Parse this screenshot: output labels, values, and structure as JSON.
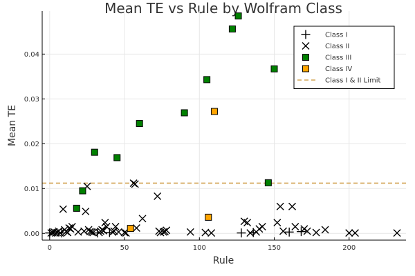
{
  "chart_data": {
    "type": "scatter",
    "title": "Mean TE vs Rule by Wolfram Class",
    "xlabel": "Rule",
    "ylabel": "Mean TE",
    "xlim": [
      -5,
      238
    ],
    "ylim": [
      -0.0015,
      0.0496
    ],
    "xticks": [
      0,
      50,
      100,
      150,
      200
    ],
    "xtick_labels": [
      "0",
      "50",
      "100",
      "150",
      "200"
    ],
    "yticks": [
      0,
      0.01,
      0.02,
      0.03,
      0.04
    ],
    "ytick_labels": [
      "0.00",
      "0.01",
      "0.02",
      "0.03",
      "0.04"
    ],
    "grid": true,
    "legend_position": "top-right",
    "threshold": {
      "name": "Class I & II Limit",
      "y": 0.0112,
      "color": "#d4a557"
    },
    "series": [
      {
        "name": "Class I",
        "marker": "plus",
        "color": "#000000",
        "x": [
          0,
          8,
          32,
          40,
          128,
          136,
          160,
          168
        ],
        "y": [
          0.0001,
          0.0001,
          0.0001,
          0.0002,
          0.0001,
          0.0002,
          0.0003,
          0.0004
        ]
      },
      {
        "name": "Class II",
        "marker": "cross",
        "color": "#000000",
        "x": [
          1,
          2,
          3,
          4,
          5,
          6,
          7,
          9,
          10,
          11,
          12,
          13,
          14,
          15,
          19,
          23,
          24,
          25,
          26,
          27,
          28,
          29,
          33,
          34,
          35,
          36,
          37,
          38,
          42,
          43,
          44,
          46,
          50,
          51,
          56,
          57,
          58,
          62,
          72,
          73,
          74,
          76,
          77,
          78,
          94,
          104,
          108,
          130,
          132,
          134,
          138,
          140,
          142,
          152,
          154,
          156,
          162,
          164,
          170,
          172,
          178,
          184,
          200,
          204,
          232
        ],
        "y": [
          0.0001,
          0.0002,
          0.0003,
          0.0001,
          0.0002,
          0.0005,
          0.0001,
          0.0054,
          0.0008,
          0.0004,
          0.0002,
          0.0012,
          0.001,
          0.0015,
          0.0003,
          0.0005,
          0.0049,
          0.0105,
          0.0008,
          0.0004,
          0.0003,
          0.0002,
          0.0002,
          0.0005,
          0.0008,
          0.0006,
          0.0024,
          0.0015,
          0.0003,
          0.0005,
          0.0015,
          0.0003,
          0.0002,
          0.0001,
          0.0112,
          0.011,
          0.0012,
          0.0033,
          0.0083,
          0.0005,
          0.0002,
          0.0003,
          0.0004,
          0.0007,
          0.0003,
          0.0002,
          0.0001,
          0.0027,
          0.0024,
          0.0001,
          0.0003,
          0.001,
          0.0015,
          0.0024,
          0.006,
          0.0005,
          0.006,
          0.0015,
          0.001,
          0.0005,
          0.0002,
          0.0008,
          0.0001,
          0.0001,
          0.0001
        ]
      },
      {
        "name": "Class III",
        "marker": "square",
        "color": "#008000",
        "x": [
          18,
          22,
          30,
          45,
          60,
          90,
          105,
          122,
          126,
          146,
          150
        ],
        "y": [
          0.0056,
          0.0095,
          0.0181,
          0.0169,
          0.0245,
          0.0269,
          0.0343,
          0.0456,
          0.0485,
          0.0113,
          0.0367
        ]
      },
      {
        "name": "Class IV",
        "marker": "square",
        "color": "#ffa500",
        "x": [
          54,
          106,
          110
        ],
        "y": [
          0.0011,
          0.0036,
          0.0272
        ]
      }
    ]
  }
}
